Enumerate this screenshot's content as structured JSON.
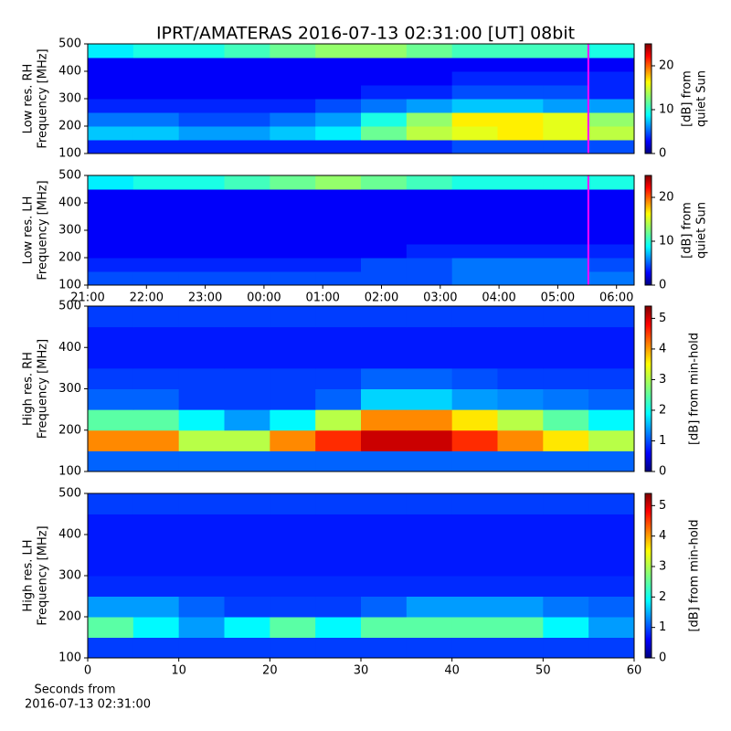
{
  "chart_data": [
    {
      "type": "heatmap",
      "title": "IPRT/AMATERAS 2016-07-13 02:31:00 [UT]   08bit",
      "ylabel": [
        "Low res. RH",
        "Frequency [MHz]"
      ],
      "colorbar_label": [
        "[dB] from",
        "quiet Sun"
      ],
      "xlim": [
        21,
        30.3
      ],
      "ylim": [
        100,
        500
      ],
      "yticks": [
        100,
        200,
        300,
        400,
        500
      ],
      "clim": [
        0,
        25
      ],
      "cticks": [
        0,
        10,
        20
      ],
      "marker_x": 29.52,
      "marker_color": "#ff00ff",
      "z": [
        [
          4,
          4,
          4,
          4,
          4,
          4,
          4,
          4,
          5,
          5,
          5,
          5
        ],
        [
          8,
          8,
          7,
          7,
          8,
          9,
          12,
          14,
          15,
          16,
          15,
          14
        ],
        [
          6,
          6,
          5,
          5,
          6,
          7,
          10,
          13,
          16,
          16,
          15,
          13
        ],
        [
          4,
          4,
          4,
          4,
          4,
          5,
          6,
          7,
          8,
          8,
          7,
          7
        ],
        [
          3,
          3,
          3,
          3,
          3,
          3,
          4,
          4,
          5,
          5,
          5,
          4
        ],
        [
          3,
          3,
          3,
          3,
          3,
          3,
          3,
          3,
          4,
          4,
          4,
          4
        ],
        [
          3,
          3,
          3,
          3,
          3,
          3,
          3,
          3,
          3,
          3,
          3,
          3
        ],
        [
          9,
          10,
          10,
          11,
          12,
          13,
          13,
          12,
          11,
          11,
          11,
          10
        ]
      ]
    },
    {
      "type": "heatmap",
      "ylabel": [
        "Low res. LH",
        "Frequency [MHz]"
      ],
      "colorbar_label": [
        "[dB] from",
        "quiet Sun"
      ],
      "xlim": [
        21,
        30.3
      ],
      "ylim": [
        100,
        500
      ],
      "yticks": [
        100,
        200,
        300,
        400,
        500
      ],
      "xticks": [
        {
          "value": 21,
          "label": "21:00"
        },
        {
          "value": 22,
          "label": "22:00"
        },
        {
          "value": 23,
          "label": "23:00"
        },
        {
          "value": 24,
          "label": "00:00"
        },
        {
          "value": 25,
          "label": "01:00"
        },
        {
          "value": 26,
          "label": "02:00"
        },
        {
          "value": 27,
          "label": "03:00"
        },
        {
          "value": 28,
          "label": "04:00"
        },
        {
          "value": 29,
          "label": "05:00"
        },
        {
          "value": 30,
          "label": "06:00"
        }
      ],
      "clim": [
        0,
        25
      ],
      "cticks": [
        0,
        10,
        20
      ],
      "marker_x": 29.52,
      "marker_color": "#ff00ff",
      "z": [
        [
          5,
          5,
          5,
          5,
          5,
          5,
          5,
          5,
          6,
          6,
          6,
          6
        ],
        [
          4,
          4,
          4,
          4,
          4,
          4,
          5,
          5,
          6,
          6,
          6,
          5
        ],
        [
          3,
          3,
          3,
          3,
          3,
          3,
          3,
          4,
          4,
          4,
          4,
          4
        ],
        [
          3,
          3,
          3,
          3,
          3,
          3,
          3,
          3,
          3,
          3,
          3,
          3
        ],
        [
          3,
          3,
          3,
          3,
          3,
          3,
          3,
          3,
          3,
          3,
          3,
          3
        ],
        [
          3,
          3,
          3,
          3,
          3,
          3,
          3,
          3,
          3,
          3,
          3,
          3
        ],
        [
          3,
          3,
          3,
          3,
          3,
          3,
          3,
          3,
          3,
          3,
          3,
          3
        ],
        [
          9,
          10,
          10,
          11,
          12,
          13,
          12,
          11,
          10,
          10,
          10,
          10
        ]
      ]
    },
    {
      "type": "heatmap",
      "ylabel": [
        "High res. RH",
        "Frequency [MHz]"
      ],
      "colorbar_label": [
        "[dB] from min-hold"
      ],
      "xlim": [
        0,
        60
      ],
      "ylim": [
        100,
        500
      ],
      "yticks": [
        100,
        200,
        300,
        400,
        500
      ],
      "clim": [
        0,
        5.4
      ],
      "cticks": [
        0,
        1,
        2,
        3,
        4,
        5
      ],
      "z": [
        [
          1.2,
          1.2,
          1.2,
          1.2,
          1.2,
          1.2,
          1.2,
          1.2,
          1.2,
          1.2,
          1.2,
          1.2
        ],
        [
          4,
          4,
          3,
          3,
          4,
          4.5,
          5,
          5,
          4.5,
          4,
          3.5,
          3
        ],
        [
          2.5,
          2.5,
          2,
          1.5,
          2,
          3,
          4,
          4,
          3.5,
          3,
          2.5,
          2
        ],
        [
          1.2,
          1.2,
          1,
          1,
          1,
          1.2,
          1.8,
          1.8,
          1.5,
          1.4,
          1.3,
          1.2
        ],
        [
          1,
          1,
          1,
          1,
          1,
          1,
          1.2,
          1.2,
          1.1,
          1,
          1,
          1
        ],
        [
          0.8,
          0.8,
          0.8,
          0.8,
          0.8,
          0.8,
          0.8,
          0.8,
          0.8,
          0.8,
          0.8,
          0.8
        ],
        [
          0.8,
          0.8,
          0.8,
          0.8,
          0.8,
          0.8,
          0.8,
          0.8,
          0.8,
          0.8,
          0.8,
          0.8
        ],
        [
          1,
          1,
          1,
          1,
          1,
          1,
          1,
          1,
          1,
          1,
          1,
          1
        ]
      ]
    },
    {
      "type": "heatmap",
      "ylabel": [
        "High res. LH",
        "Frequency [MHz]"
      ],
      "colorbar_label": [
        "[dB] from min-hold"
      ],
      "xlabel": [
        "Seconds from",
        "2016-07-13 02:31:00"
      ],
      "xlim": [
        0,
        60
      ],
      "ylim": [
        100,
        500
      ],
      "yticks": [
        100,
        200,
        300,
        400,
        500
      ],
      "xticks": [
        0,
        10,
        20,
        30,
        40,
        50,
        60
      ],
      "clim": [
        0,
        5.4
      ],
      "cticks": [
        0,
        1,
        2,
        3,
        4,
        5
      ],
      "z": [
        [
          1,
          1,
          1,
          1,
          1,
          1,
          1,
          1,
          1,
          1,
          1,
          1
        ],
        [
          2.5,
          2,
          1.5,
          2,
          2.5,
          2,
          2.5,
          2.5,
          2.5,
          2.5,
          2,
          1.5
        ],
        [
          1.5,
          1.5,
          1.2,
          1,
          1,
          1,
          1.2,
          1.5,
          1.5,
          1.5,
          1.3,
          1.2
        ],
        [
          0.9,
          0.9,
          0.9,
          0.9,
          0.9,
          0.9,
          0.9,
          0.9,
          0.9,
          0.9,
          0.9,
          0.9
        ],
        [
          0.8,
          0.8,
          0.8,
          0.8,
          0.8,
          0.8,
          0.8,
          0.8,
          0.8,
          0.8,
          0.8,
          0.8
        ],
        [
          0.8,
          0.8,
          0.8,
          0.8,
          0.8,
          0.8,
          0.8,
          0.8,
          0.8,
          0.8,
          0.8,
          0.8
        ],
        [
          0.8,
          0.8,
          0.8,
          0.8,
          0.8,
          0.8,
          0.8,
          0.8,
          0.8,
          0.8,
          0.8,
          0.8
        ],
        [
          1,
          1,
          1,
          1,
          1,
          1,
          1,
          1,
          1,
          1,
          1,
          1
        ]
      ]
    }
  ]
}
